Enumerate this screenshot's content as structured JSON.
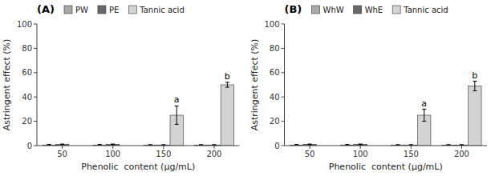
{
  "chart_data": [
    {
      "type": "bar",
      "title": "(A)",
      "categories": [
        "50",
        "100",
        "150",
        "200"
      ],
      "series": [
        {
          "name": "PW",
          "color": "#a9a9a9",
          "values": [
            0.5,
            0.5,
            0.5,
            0.5
          ],
          "errors": [
            0.5,
            0.5,
            0.3,
            0.3
          ]
        },
        {
          "name": "PE",
          "color": "#696969",
          "values": [
            1.0,
            1.0,
            0.5,
            0.5
          ],
          "errors": [
            0.3,
            0.3,
            0.3,
            0.3
          ]
        },
        {
          "name": "Tannic acid",
          "color": "#d3d3d3",
          "values": [
            0.0,
            0.0,
            25.0,
            50.0
          ],
          "errors": [
            0.0,
            0.0,
            7.5,
            2.0
          ]
        }
      ],
      "x_label": "Phenolic  content (μg/mL)",
      "y_label": "Astringent effect (%)",
      "ylim": [
        0,
        100
      ],
      "yticks": [
        0,
        20,
        40,
        60,
        80,
        100
      ],
      "annotations": [
        {
          "text": "a",
          "x": "150",
          "series": "Tannic acid",
          "y": 34
        },
        {
          "text": "b",
          "x": "200",
          "series": "Tannic acid",
          "y": 53
        }
      ],
      "legend": "top",
      "grid": false
    },
    {
      "type": "bar",
      "title": "(B)",
      "categories": [
        "50",
        "100",
        "150",
        "200"
      ],
      "series": [
        {
          "name": "WhW",
          "color": "#a9a9a9",
          "values": [
            0.5,
            0.5,
            0.5,
            0.5
          ],
          "errors": [
            0.5,
            0.5,
            0.3,
            0.3
          ]
        },
        {
          "name": "WhE",
          "color": "#696969",
          "values": [
            1.0,
            1.0,
            0.5,
            0.5
          ],
          "errors": [
            0.3,
            0.3,
            0.3,
            0.3
          ]
        },
        {
          "name": "Tannic acid",
          "color": "#d3d3d3",
          "values": [
            0.0,
            0.0,
            25.0,
            49.0
          ],
          "errors": [
            0.0,
            0.0,
            5.0,
            4.0
          ]
        }
      ],
      "x_label": "Phenolic  content (μg/mL)",
      "y_label": "Astringent effect (%)",
      "ylim": [
        0,
        100
      ],
      "yticks": [
        0,
        20,
        40,
        60,
        80,
        100
      ],
      "annotations": [
        {
          "text": "a",
          "x": "150",
          "series": "Tannic acid",
          "y": 31
        },
        {
          "text": "b",
          "x": "200",
          "series": "Tannic acid",
          "y": 54
        }
      ],
      "legend": "top",
      "grid": false
    }
  ]
}
